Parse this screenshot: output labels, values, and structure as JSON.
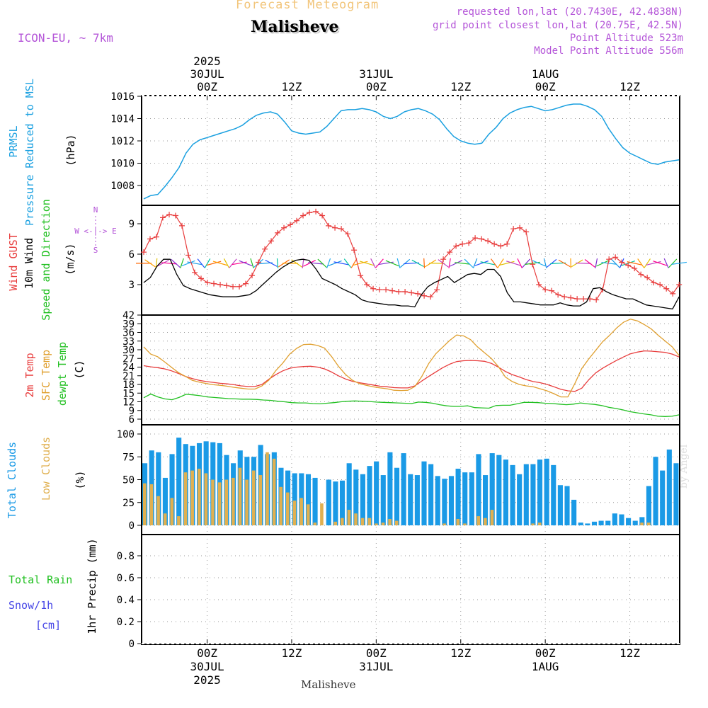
{
  "header": {
    "title": "Forecast Meteogram",
    "location": "Malisheve",
    "model": "ICON-EU, ~ 7km",
    "requested": "requested lon,lat (20.7430E, 42.4838N)",
    "grid_point": "grid point closest lon,lat (20.75E, 42.5N)",
    "point_alt": "Point Altitude 523m",
    "model_alt": "Model Point Altitude 556m",
    "footer": "Malisheve",
    "credit": "by Angel"
  },
  "colors": {
    "pressure": "#1aa0e0",
    "gust": "#e83c3c",
    "wind": "#000000",
    "temp": "#e83c3c",
    "sfc_temp": "#e0a030",
    "dewpt": "#22c022",
    "clouds_total": "#1a9ae6",
    "clouds_low": "#e0b050",
    "rain": "#22c022",
    "snow": "#4646e6",
    "purple": "#b455d8"
  },
  "chart_data": [
    {
      "type": "line",
      "panel": "pressure",
      "ylabel_lines": [
        "PRMSL",
        "Pressure Reduced to MSL",
        "(hPa)"
      ],
      "y_ticks": [
        "1008",
        "1010",
        "1012",
        "1014",
        "1016"
      ],
      "ylim": [
        1006.5,
        1016.2
      ],
      "x_unit": "hours since 2025-07-29 15Z",
      "series": [
        {
          "x": [
            0,
            1,
            2,
            3,
            4,
            5,
            6,
            7,
            8,
            9,
            10,
            11,
            12,
            13,
            14,
            15,
            16,
            17,
            18,
            19,
            20,
            21,
            22,
            23,
            24,
            25,
            26,
            27,
            28,
            29,
            30,
            31,
            32,
            33,
            34,
            35,
            36,
            37,
            38,
            39,
            40,
            41,
            42,
            43,
            44,
            45,
            46,
            47,
            48,
            49,
            50,
            51,
            52,
            53,
            54,
            55,
            56,
            57,
            58,
            59,
            60,
            61,
            62,
            63,
            64,
            65,
            66,
            67,
            68,
            69,
            70,
            71,
            72,
            73,
            74,
            75,
            76
          ],
          "y": [
            1006.8,
            1007.1,
            1007.2,
            1007.9,
            1008.7,
            1009.6,
            1010.9,
            1011.7,
            1012.1,
            1012.3,
            1012.5,
            1012.7,
            1012.9,
            1013.1,
            1013.4,
            1013.9,
            1014.3,
            1014.5,
            1014.6,
            1014.4,
            1013.7,
            1012.9,
            1012.7,
            1012.6,
            1012.7,
            1012.8,
            1013.3,
            1014.0,
            1014.7,
            1014.8,
            1014.8,
            1014.9,
            1014.8,
            1014.6,
            1014.2,
            1014.0,
            1014.2,
            1014.6,
            1014.8,
            1014.9,
            1014.7,
            1014.4,
            1013.9,
            1013.1,
            1012.4,
            1012.0,
            1011.8,
            1011.7,
            1011.8,
            1012.6,
            1013.2,
            1014.0,
            1014.5,
            1014.8,
            1015.0,
            1015.1,
            1014.9,
            1014.7,
            1014.8,
            1015.0,
            1015.2,
            1015.3,
            1015.3,
            1015.1,
            1014.8,
            1014.2,
            1013.1,
            1012.2,
            1011.4,
            1010.9,
            1010.6,
            1010.3,
            1010.0,
            1009.9,
            1010.1,
            1010.2,
            1010.3
          ]
        }
      ]
    },
    {
      "type": "line",
      "panel": "wind",
      "ylabel_lines": [
        "Wind GUST",
        "10m Wind",
        "Speed and Direction",
        "(m/s)"
      ],
      "compass": [
        "N",
        "W <-|-> E",
        "S"
      ],
      "y_ticks": [
        "3",
        "6",
        "9"
      ],
      "ylim": [
        0,
        11
      ],
      "series": [
        {
          "name": "Wind GUST",
          "values": [
            6.2,
            7.5,
            7.7,
            9.6,
            9.9,
            9.8,
            8.8,
            5.9,
            4.2,
            3.6,
            3.2,
            3.1,
            3.0,
            2.9,
            2.8,
            2.8,
            3.1,
            3.9,
            5.2,
            6.5,
            7.3,
            8.1,
            8.6,
            8.9,
            9.3,
            9.8,
            10.1,
            10.2,
            9.8,
            8.8,
            8.6,
            8.5,
            8.0,
            6.4,
            3.9,
            3.0,
            2.6,
            2.5,
            2.5,
            2.4,
            2.3,
            2.3,
            2.2,
            2.1,
            1.9,
            1.8,
            2.5,
            5.5,
            6.2,
            6.8,
            7.0,
            7.1,
            7.6,
            7.5,
            7.3,
            7.0,
            6.8,
            7.0,
            8.5,
            8.6,
            8.2,
            5.0,
            3.0,
            2.5,
            2.4,
            2.0,
            1.8,
            1.7,
            1.6,
            1.6,
            1.6,
            1.5,
            2.5,
            5.5,
            5.7,
            5.2,
            4.9,
            4.6,
            4.0,
            3.7,
            3.2,
            3.0,
            2.6,
            2.1,
            3.0
          ]
        },
        {
          "name": "10m Wind",
          "values": [
            3.2,
            3.7,
            4.8,
            5.5,
            5.5,
            4.0,
            2.9,
            2.6,
            2.4,
            2.2,
            2.0,
            1.9,
            1.8,
            1.8,
            1.8,
            1.9,
            2.0,
            2.4,
            3.0,
            3.6,
            4.2,
            4.7,
            5.1,
            5.4,
            5.5,
            5.4,
            4.6,
            3.6,
            3.3,
            3.0,
            2.6,
            2.3,
            2.0,
            1.5,
            1.3,
            1.2,
            1.1,
            1.0,
            1.0,
            0.9,
            0.9,
            0.8,
            2.0,
            2.8,
            3.2,
            3.5,
            3.8,
            3.2,
            3.6,
            4.0,
            4.1,
            4.0,
            4.5,
            4.5,
            3.8,
            2.2,
            1.3,
            1.3,
            1.2,
            1.1,
            1.0,
            1.0,
            1.0,
            1.2,
            1.0,
            0.9,
            0.9,
            1.3,
            2.6,
            2.7,
            2.3,
            2.0,
            1.8,
            1.6,
            1.6,
            1.3,
            1.0,
            0.9,
            0.8,
            0.7,
            0.6,
            1.8
          ]
        }
      ]
    },
    {
      "type": "line",
      "panel": "temperature",
      "ylabel_lines": [
        "2m Temp",
        "SFC Temp",
        "dewpt Temp",
        "(C)"
      ],
      "y_ticks": [
        "6",
        "9",
        "12",
        "15",
        "18",
        "21",
        "24",
        "27",
        "30",
        "33",
        "36",
        "39",
        "42"
      ],
      "ylim": [
        5,
        42
      ],
      "series": [
        {
          "name": "2m Temp",
          "values": [
            24.5,
            24.1,
            23.8,
            23.4,
            22.7,
            21.8,
            20.8,
            20.0,
            19.4,
            19.0,
            18.7,
            18.4,
            18.2,
            17.9,
            17.5,
            17.3,
            17.3,
            18.0,
            19.8,
            21.4,
            22.7,
            23.6,
            24.0,
            24.2,
            24.3,
            24.0,
            23.4,
            22.3,
            21.0,
            19.9,
            19.1,
            18.6,
            18.2,
            17.8,
            17.4,
            17.2,
            16.9,
            16.8,
            16.8,
            17.5,
            19.2,
            20.8,
            22.3,
            23.8,
            25.0,
            25.9,
            26.2,
            26.3,
            26.2,
            26.0,
            25.3,
            24.0,
            22.5,
            21.4,
            20.6,
            19.7,
            19.0,
            18.6,
            18.0,
            17.2,
            16.3,
            15.8,
            15.6,
            16.7,
            19.6,
            22.0,
            23.6,
            25.0,
            26.3,
            27.5,
            28.6,
            29.2,
            29.6,
            29.5,
            29.3,
            29.1,
            28.5,
            27.5
          ]
        },
        {
          "name": "SFC Temp",
          "values": [
            31.0,
            28.5,
            27.6,
            25.8,
            23.9,
            22.1,
            20.8,
            19.4,
            18.8,
            18.3,
            17.9,
            17.7,
            17.4,
            17.0,
            16.7,
            16.4,
            16.4,
            17.5,
            19.5,
            22.8,
            25.4,
            28.5,
            30.5,
            31.8,
            31.9,
            31.5,
            30.6,
            27.7,
            24.3,
            21.5,
            19.5,
            18.3,
            17.7,
            17.2,
            16.8,
            16.5,
            16.0,
            15.9,
            16.0,
            17.3,
            20.8,
            25.3,
            28.6,
            30.9,
            33.2,
            35.1,
            34.8,
            33.5,
            31.0,
            29.0,
            27.0,
            24.2,
            20.6,
            19.0,
            18.0,
            17.5,
            17.2,
            16.5,
            15.8,
            14.8,
            13.7,
            13.7,
            18.3,
            23.5,
            26.8,
            29.8,
            32.8,
            35.0,
            37.5,
            39.5,
            40.6,
            40.0,
            38.7,
            37.2,
            35.0,
            33.0,
            31.0,
            28.0
          ]
        },
        {
          "name": "dewpt Temp",
          "values": [
            13.4,
            14.7,
            13.7,
            13.0,
            12.7,
            13.5,
            14.6,
            14.4,
            14.1,
            13.7,
            13.5,
            13.3,
            13.1,
            13.0,
            12.9,
            12.9,
            12.8,
            12.6,
            12.5,
            12.2,
            12.0,
            11.7,
            11.6,
            11.6,
            11.4,
            11.3,
            11.5,
            11.7,
            12.0,
            12.2,
            12.3,
            12.2,
            12.1,
            11.9,
            11.8,
            11.7,
            11.6,
            11.5,
            11.4,
            11.9,
            11.8,
            11.5,
            11.0,
            10.6,
            10.4,
            10.4,
            10.6,
            10.0,
            9.9,
            9.8,
            10.7,
            10.8,
            10.8,
            11.3,
            11.8,
            11.8,
            11.7,
            11.5,
            11.4,
            11.2,
            11.0,
            11.2,
            11.6,
            11.3,
            11.1,
            10.7,
            10.1,
            9.7,
            9.2,
            8.6,
            8.2,
            7.8,
            7.5,
            7.0,
            6.9,
            7.0,
            7.5
          ]
        }
      ]
    },
    {
      "type": "bar",
      "panel": "clouds",
      "ylabel_lines": [
        "Total Clouds",
        "Low Clouds",
        "(%)"
      ],
      "y_ticks": [
        "0",
        "25",
        "50",
        "75",
        "100"
      ],
      "ylim": [
        -7,
        107
      ],
      "series": [
        {
          "name": "Total Clouds",
          "values": [
            68,
            82,
            80,
            52,
            78,
            96,
            89,
            87,
            90,
            92,
            91,
            90,
            77,
            68,
            82,
            75,
            75,
            88,
            78,
            80,
            63,
            60,
            57,
            57,
            56,
            52,
            0,
            50,
            48,
            49,
            68,
            61,
            56,
            65,
            70,
            55,
            80,
            63,
            79,
            56,
            55,
            70,
            67,
            54,
            51,
            54,
            62,
            58,
            58,
            78,
            55,
            79,
            77,
            72,
            66,
            56,
            67,
            67,
            72,
            73,
            66,
            44,
            43,
            28,
            3,
            2,
            4,
            5,
            5,
            13,
            12,
            8,
            5,
            9,
            43,
            75,
            60,
            83,
            68
          ]
        },
        {
          "name": "Low Clouds",
          "values": [
            46,
            45,
            32,
            13,
            30,
            10,
            58,
            60,
            62,
            57,
            50,
            47,
            50,
            52,
            63,
            50,
            60,
            55,
            80,
            73,
            42,
            36,
            27,
            30,
            23,
            3,
            24,
            0,
            4,
            8,
            17,
            13,
            8,
            8,
            2,
            3,
            7,
            5,
            0,
            0,
            0,
            0,
            0,
            0,
            2,
            0,
            7,
            2,
            0,
            10,
            8,
            17,
            0,
            0,
            0,
            0,
            0,
            2,
            3,
            0,
            0,
            0,
            0,
            0,
            0,
            0,
            0,
            0,
            0,
            0,
            0,
            0,
            0,
            3,
            3,
            0,
            0,
            0,
            0
          ]
        }
      ]
    },
    {
      "type": "bar",
      "panel": "precip",
      "ylabel_lines": [
        "1hr Precip (mm)"
      ],
      "legend_lines": [
        "Total Rain",
        "Snow/1h",
        "[cm]"
      ],
      "y_ticks": [
        "0",
        "0.2",
        "0.4",
        "0.6",
        "0.8"
      ],
      "ylim": [
        0,
        1.0
      ],
      "series": [
        {
          "name": "Total Rain",
          "values": []
        }
      ]
    }
  ],
  "time_axis": {
    "top": [
      {
        "key": "d30",
        "lines": [
          "2025",
          "30JUL",
          "00Z"
        ]
      },
      {
        "key": "h12a",
        "lines": [
          "12Z"
        ]
      },
      {
        "key": "d31",
        "lines": [
          "31JUL",
          "00Z"
        ]
      },
      {
        "key": "h12b",
        "lines": [
          "12Z"
        ]
      },
      {
        "key": "d1",
        "lines": [
          "1AUG",
          "00Z"
        ]
      },
      {
        "key": "h12c",
        "lines": [
          "12Z"
        ]
      }
    ],
    "bottom": [
      {
        "key": "d30",
        "lines": [
          "00Z",
          "30JUL",
          "2025"
        ]
      },
      {
        "key": "h12a",
        "lines": [
          "12Z"
        ]
      },
      {
        "key": "d31",
        "lines": [
          "00Z",
          "31JUL"
        ]
      },
      {
        "key": "h12b",
        "lines": [
          "12Z"
        ]
      },
      {
        "key": "d1",
        "lines": [
          "00Z",
          "1AUG"
        ]
      },
      {
        "key": "h12c",
        "lines": [
          "12Z"
        ]
      }
    ]
  }
}
